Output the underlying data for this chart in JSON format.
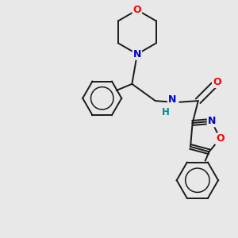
{
  "background_color": "#e8e8e8",
  "bond_color": "#1a1a1a",
  "atom_colors": {
    "O": "#ff0000",
    "N": "#0000cc",
    "H": "#008b8b",
    "C": "#1a1a1a"
  },
  "figsize": [
    3.0,
    3.0
  ],
  "dpi": 100
}
